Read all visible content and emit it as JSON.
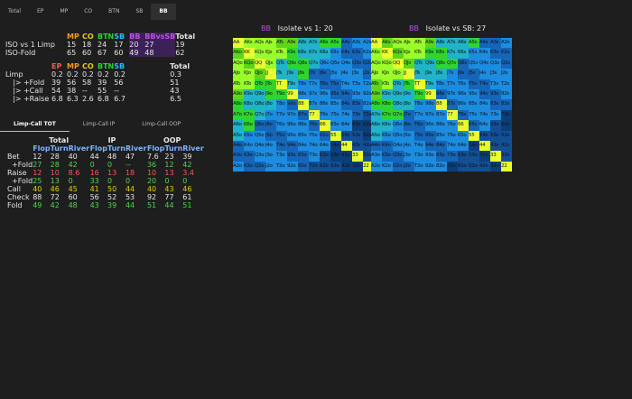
{
  "tabs": [
    "Total",
    "EP",
    "MP",
    "CO",
    "BTN",
    "SB",
    "BB"
  ],
  "iso_table": {
    "headers": [
      "MP",
      "CO",
      "BTN",
      "SB",
      "BB",
      "BBvsSB",
      "Total"
    ],
    "rows": [
      {
        "label": "ISO vs 1 Limp",
        "values": [
          "15",
          "18",
          "24",
          "17",
          "20",
          "27",
          "19"
        ]
      },
      {
        "label": "ISO-Fold",
        "values": [
          "65",
          "60",
          "67",
          "60",
          "49",
          "48",
          "62"
        ]
      }
    ]
  },
  "limp_table": {
    "headers": [
      "EP",
      "MP",
      "CO",
      "BTN",
      "SB",
      "Total"
    ],
    "rows": [
      {
        "label": "Limp",
        "values": [
          "0.2",
          "0.2",
          "0.2",
          "0.2",
          "0.2",
          "0.3"
        ]
      },
      {
        "label": "|> +Fold",
        "values": [
          "39",
          "56",
          "58",
          "39",
          "56",
          "51"
        ]
      },
      {
        "label": "|> +Call",
        "values": [
          "54",
          "38",
          "--",
          "55",
          "--",
          "43"
        ]
      },
      {
        "label": "|> +Raise",
        "values": [
          "6.8",
          "6.3",
          "2.6",
          "6.8",
          "6.7",
          "6.5"
        ]
      }
    ]
  },
  "subtabs": [
    "Limp-Call TOT",
    "Limp-Call IP",
    "Limp-Call OOP"
  ],
  "street_table": {
    "groups": [
      "Total",
      "IP",
      "OOP"
    ],
    "subheaders": [
      "Flop",
      "Turn",
      "River"
    ],
    "rows": [
      {
        "label": "Bet",
        "values": [
          "12",
          "28",
          "40",
          "44",
          "48",
          "47",
          "7.6",
          "23",
          "39"
        ]
      },
      {
        "label": "+Fold",
        "values": [
          "27",
          "28",
          "42",
          "0",
          "0",
          "--",
          "36",
          "12",
          "42"
        ]
      },
      {
        "label": "Raise",
        "values": [
          "12",
          "10",
          "8.6",
          "16",
          "13",
          "18",
          "10",
          "13",
          "3.4"
        ]
      },
      {
        "label": "+Fold",
        "values": [
          "25",
          "13",
          "0",
          "33",
          "0",
          "0",
          "20",
          "0",
          "0"
        ]
      },
      {
        "label": "Call",
        "values": [
          "40",
          "46",
          "45",
          "41",
          "50",
          "44",
          "40",
          "43",
          "46"
        ]
      },
      {
        "label": "Check",
        "values": [
          "88",
          "72",
          "60",
          "56",
          "52",
          "53",
          "92",
          "77",
          "61"
        ]
      },
      {
        "label": "Fold",
        "values": [
          "49",
          "42",
          "48",
          "43",
          "39",
          "44",
          "51",
          "44",
          "51"
        ]
      }
    ]
  },
  "matrices": [
    {
      "badge": "BB",
      "title": "Isolate vs 1:",
      "value": "20"
    },
    {
      "badge": "BB",
      "title": "Isolate vs SB:",
      "value": "27"
    }
  ],
  "colors": {
    "orange": "#f39c12",
    "yellow": "#e6d000",
    "green": "#27d827",
    "cyan": "#1fc2ff",
    "purple": "#c24de6"
  }
}
